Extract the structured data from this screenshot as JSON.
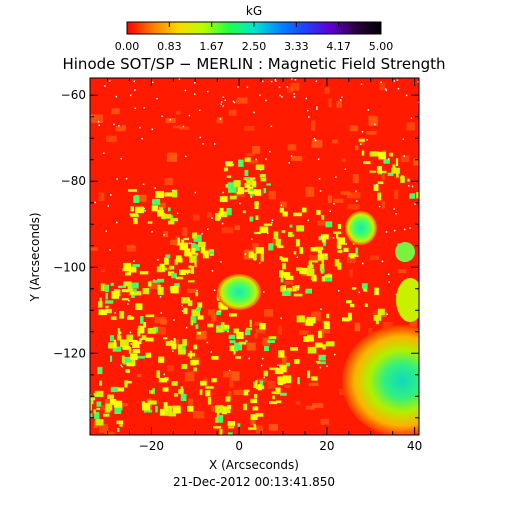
{
  "colorbar": {
    "unit": "kG",
    "ticks": [
      "0.00",
      "0.83",
      "1.67",
      "2.50",
      "3.33",
      "4.17",
      "5.00"
    ],
    "range": [
      0,
      5
    ],
    "colors": [
      "#ff0000",
      "#ff7a00",
      "#ffd800",
      "#b8ff00",
      "#22ff44",
      "#00e6d0",
      "#0088ff",
      "#2040ff",
      "#6000d0",
      "#2a0040",
      "#000000"
    ]
  },
  "title": "Hinode SOT/SP − MERLIN : Magnetic Field Strength",
  "x_axis": {
    "label": "X (Arcseconds)",
    "ticks": [
      "−20",
      "0",
      "20",
      "40"
    ],
    "range": [
      -34,
      41
    ]
  },
  "y_axis": {
    "label": "Y (Arcseconds)",
    "ticks": [
      "−60",
      "−80",
      "−100",
      "−120"
    ],
    "range": [
      -139,
      -56
    ]
  },
  "timestamp": "21-Dec-2012 00:13:41.850",
  "map_colors": {
    "background": "#ff1a00",
    "weak": "#ff5a10",
    "plage": "#d8f000",
    "plage_edge": "#ffff00",
    "pore": "#44ff66",
    "core": "#18e8b0"
  }
}
